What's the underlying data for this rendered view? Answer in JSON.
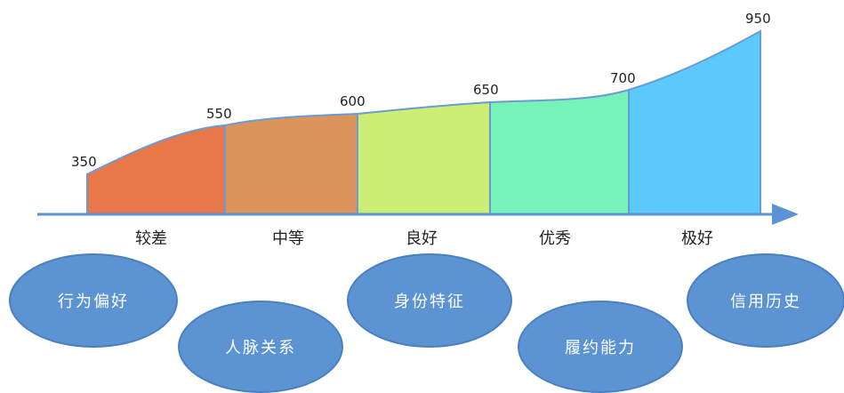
{
  "scores": [
    "350",
    "550",
    "600",
    "650",
    "700",
    "950"
  ],
  "bands": [
    {
      "label": "较差",
      "color": "#e8774a"
    },
    {
      "label": "中等",
      "color": "#db955a"
    },
    {
      "label": "良好",
      "color": "#cdee74"
    },
    {
      "label": "优秀",
      "color": "#77f2b8"
    },
    {
      "label": "极好",
      "color": "#5bc9fa"
    }
  ],
  "factors": [
    "行为偏好",
    "人脉关系",
    "身份特征",
    "履约能力",
    "信用历史"
  ],
  "colors": {
    "axis": "#5b93d3",
    "bubble": "#5b93d3",
    "bubble_text": "#ffffff"
  }
}
